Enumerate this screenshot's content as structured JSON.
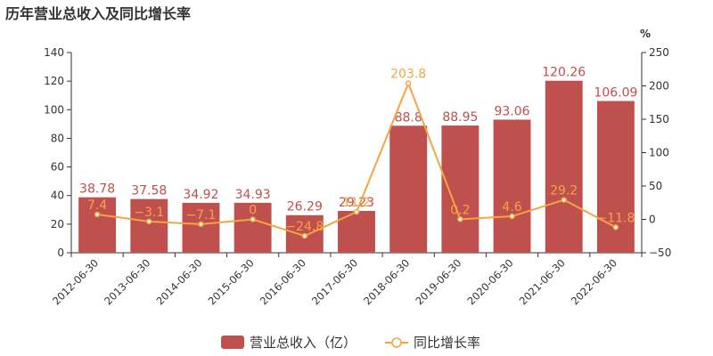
{
  "chart_data": {
    "type": "bar",
    "title": "历年营业总收入及同比增长率",
    "categories": [
      "2012-06-30",
      "2013-06-30",
      "2014-06-30",
      "2015-06-30",
      "2016-06-30",
      "2017-06-30",
      "2018-06-30",
      "2019-06-30",
      "2020-06-30",
      "2021-06-30",
      "2022-06-30"
    ],
    "series": [
      {
        "name": "营业总收入（亿）",
        "type": "bar",
        "axis": "left",
        "color": "#c0504d",
        "values": [
          38.78,
          37.58,
          34.92,
          34.93,
          26.29,
          29.23,
          88.8,
          88.95,
          93.06,
          120.26,
          106.09
        ],
        "labels": [
          "38.78",
          "37.58",
          "34.92",
          "34.93",
          "26.29",
          "29.23",
          "88.8",
          "88.95",
          "93.06",
          "120.26",
          "106.09"
        ]
      },
      {
        "name": "同比增长率",
        "type": "line",
        "axis": "right",
        "color": "#f4a443",
        "values": [
          7.4,
          -3.1,
          -7.1,
          0,
          -24.8,
          11.2,
          203.8,
          0.2,
          4.6,
          29.2,
          -11.8
        ],
        "labels": [
          "7.4",
          "−3.1",
          "−7.1",
          "0",
          "−24.8",
          "11.2",
          "203.8",
          "0.2",
          "4.6",
          "29.2",
          "−11.8"
        ]
      }
    ],
    "y_left": {
      "min": 0,
      "max": 140,
      "ticks": [
        "0",
        "20",
        "40",
        "60",
        "80",
        "100",
        "120",
        "140"
      ]
    },
    "y_right": {
      "min": -50,
      "max": 250,
      "unit": "%",
      "ticks": [
        "−50",
        "0",
        "50",
        "100",
        "150",
        "200",
        "250"
      ]
    },
    "grid": false,
    "legend_position": "bottom-center"
  }
}
